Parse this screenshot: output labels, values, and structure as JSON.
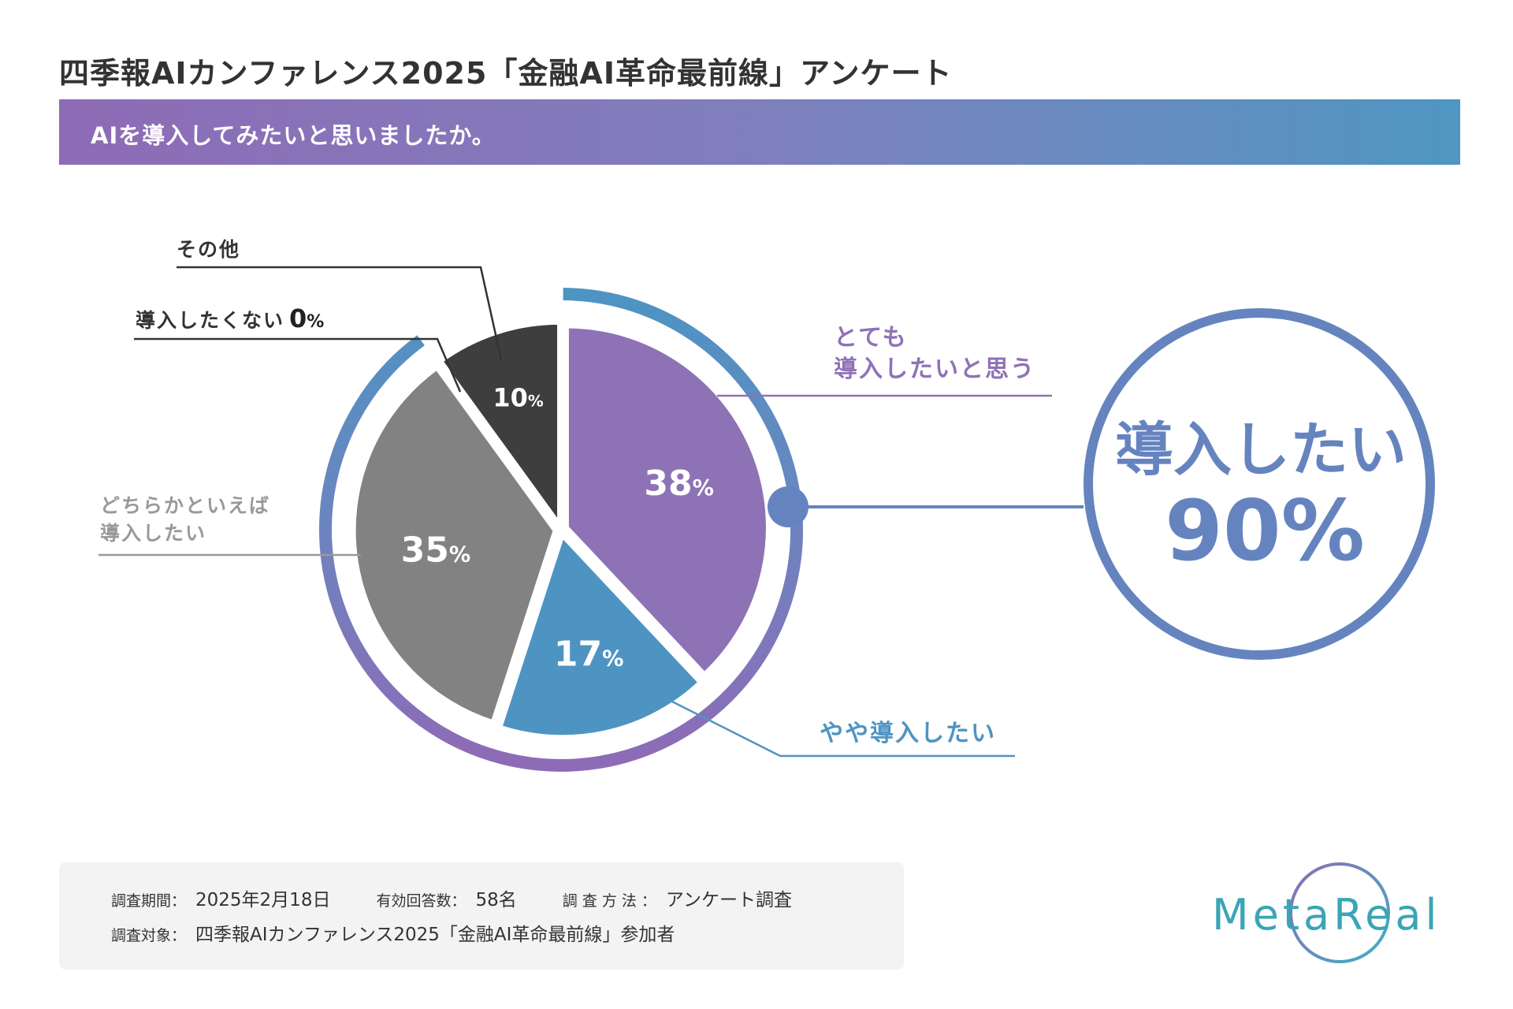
{
  "header": {
    "title": "四季報AIカンファレンス2025「金融AI革命最前線」アンケート",
    "question": "AIを導入してみたいと思いましたか。"
  },
  "colors": {
    "very": "#8e72b6",
    "somewhat": "#4e94c2",
    "maybe": "#828282",
    "other": "#3e3e3e",
    "summary": "#6584bf",
    "banner_start": "#8e6bb6",
    "banner_end": "#4f96c2"
  },
  "chart_data": {
    "type": "pie",
    "title": "AIを導入してみたいと思いましたか。",
    "slices": [
      {
        "label_lines": [
          "とても",
          "導入したいと思う"
        ],
        "value": 38,
        "value_label": "38",
        "unit": "%"
      },
      {
        "label_lines": [
          "やや導入したい"
        ],
        "value": 17,
        "value_label": "17",
        "unit": "%"
      },
      {
        "label_lines": [
          "どちらかといえば",
          "導入したい"
        ],
        "value": 35,
        "value_label": "35",
        "unit": "%"
      },
      {
        "label_lines": [
          "導入したくない"
        ],
        "value": 0,
        "value_label": "0",
        "unit": "%"
      },
      {
        "label_lines": [
          "その他"
        ],
        "value": 10,
        "value_label": "10",
        "unit": "%"
      }
    ],
    "summary": {
      "label": "導入したい",
      "value": 90,
      "value_label": "90%"
    }
  },
  "footer": {
    "period_label": "調査期間：",
    "period_value": "2025年2月18日",
    "count_label": "有効回答数：",
    "count_value": "58名",
    "method_label": "調 査 方 法 ：",
    "method_value": "アンケート調査",
    "target_label": "調査対象：",
    "target_value": "四季報AIカンファレンス2025「金融AI革命最前線」参加者"
  },
  "brand": {
    "logo_text": "MetaReal"
  }
}
